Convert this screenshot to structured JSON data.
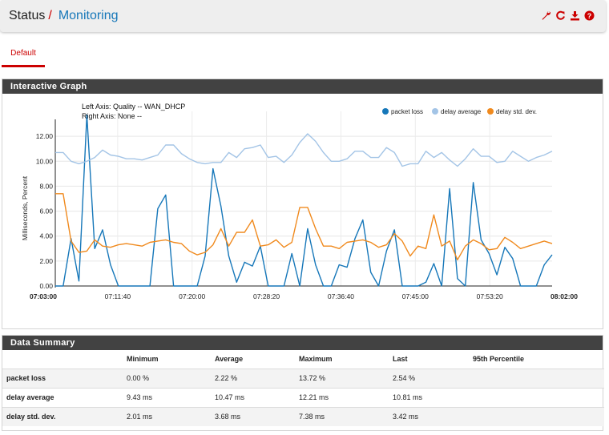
{
  "header": {
    "crumb_status": "Status",
    "crumb_sep": "/",
    "crumb_current": "Monitoring",
    "icons": [
      "wrench-icon",
      "refresh-icon",
      "download-icon",
      "help-icon"
    ],
    "accent": "#cc0000",
    "link": "#1677b9"
  },
  "tabs": [
    {
      "label": "Default"
    }
  ],
  "graph_panel": {
    "title": "Interactive Graph"
  },
  "chart_data": {
    "type": "line",
    "left_axis_label": "Left Axis: Quality -- WAN_DHCP",
    "right_axis_label": "Right Axis: None --",
    "ylabel": "Milliseconds, Percent",
    "ylim": [
      0,
      14
    ],
    "yticks": [
      "0.00",
      "2.00",
      "4.00",
      "6.00",
      "8.00",
      "10.00",
      "12.00"
    ],
    "xticks": [
      "07:03:00",
      "07:11:40",
      "07:20:00",
      "07:28:20",
      "07:36:40",
      "07:45:00",
      "07:53:20",
      "08:02:00"
    ],
    "grid": true,
    "legend_position": "top-right",
    "series": [
      {
        "name": "packet loss",
        "color": "#1677b9",
        "values": [
          0,
          0,
          3.8,
          0.4,
          13.7,
          3,
          4.5,
          1.7,
          0,
          0,
          0,
          0,
          0,
          6.2,
          7.3,
          0,
          0,
          0,
          0,
          2.4,
          9.4,
          6.4,
          2.4,
          0.3,
          1.9,
          1.6,
          3.2,
          0,
          0,
          0,
          2.6,
          0,
          4.6,
          1.7,
          0,
          0,
          1.7,
          1.5,
          3.8,
          5.3,
          1.1,
          0,
          2.8,
          4.5,
          0,
          0,
          0,
          0.3,
          1.8,
          0,
          7.8,
          0.6,
          0,
          8.3,
          3.7,
          2.6,
          0.9,
          3.1,
          2.2,
          0,
          0,
          0,
          1.7,
          2.5
        ]
      },
      {
        "name": "delay average",
        "color": "#a3c4e6",
        "values": [
          10.7,
          10.7,
          10,
          9.8,
          10,
          10.3,
          10.9,
          10.5,
          10.4,
          10.2,
          10.2,
          10.1,
          10.3,
          10.5,
          11.3,
          11.3,
          10.6,
          10.2,
          9.9,
          9.8,
          9.9,
          9.9,
          10.7,
          10.3,
          11,
          11.1,
          11.3,
          10.3,
          10.4,
          9.9,
          10.5,
          11.5,
          12.2,
          11.6,
          10.7,
          10,
          10,
          10.2,
          10.8,
          10.8,
          10.3,
          10.3,
          11.1,
          10.7,
          9.6,
          9.8,
          9.8,
          10.8,
          10.3,
          10.7,
          10.1,
          9.6,
          10.2,
          11,
          10.4,
          10.4,
          9.9,
          10,
          10.8,
          10.4,
          10,
          10.3,
          10.5,
          10.8
        ]
      },
      {
        "name": "delay std. dev.",
        "color": "#f08a1e",
        "values": [
          7.4,
          7.4,
          3.6,
          2.7,
          2.8,
          3.7,
          3.2,
          3.1,
          3.3,
          3.4,
          3.3,
          3.2,
          3.5,
          3.6,
          3.7,
          3.5,
          3.4,
          2.8,
          2.5,
          2.7,
          3.3,
          4.6,
          3.2,
          4.3,
          4.3,
          5.3,
          3.2,
          3.3,
          3.7,
          3.1,
          3.5,
          6.3,
          6.3,
          4.6,
          3.2,
          3.2,
          3,
          3.5,
          3.6,
          3.7,
          3.5,
          3.1,
          3.3,
          4.2,
          3.6,
          2.4,
          3.2,
          3,
          5.7,
          3.2,
          3.6,
          2.1,
          3.2,
          3.7,
          3.4,
          2.9,
          3,
          3.9,
          3.5,
          3,
          3.2,
          3.4,
          3.6,
          3.4
        ]
      }
    ]
  },
  "summary_panel": {
    "title": "Data Summary",
    "columns": [
      "Minimum",
      "Average",
      "Maximum",
      "Last",
      "95th Percentile"
    ],
    "rows": [
      {
        "label": "packet loss",
        "min": "0.00 %",
        "avg": "2.22 %",
        "max": "13.72 %",
        "last": "2.54 %",
        "p95": ""
      },
      {
        "label": "delay average",
        "min": "9.43 ms",
        "avg": "10.47 ms",
        "max": "12.21 ms",
        "last": "10.81 ms",
        "p95": ""
      },
      {
        "label": "delay std. dev.",
        "min": "2.01 ms",
        "avg": "3.68 ms",
        "max": "7.38 ms",
        "last": "3.42 ms",
        "p95": ""
      }
    ]
  }
}
